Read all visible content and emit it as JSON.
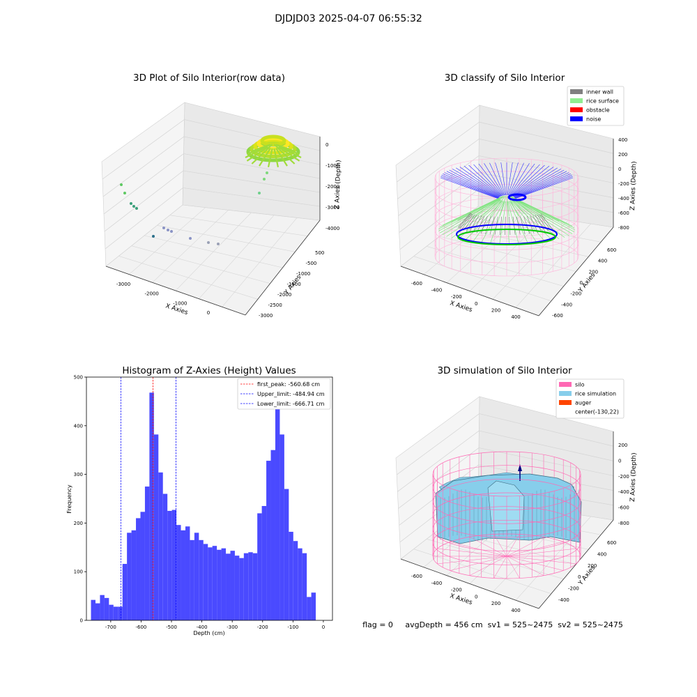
{
  "suptitle": "DJDJD03 2025-04-07 06:55:32",
  "footer": "flag = 0     avgDepth = 456 cm  sv1 = 525~2475  sv2 = 525~2475",
  "colors": {
    "hist_bar": "#4a4aff",
    "first_peak": "#ff0000",
    "limit": "#0000ff",
    "inner_wall": "#808080",
    "rice_surface": "#90ee90",
    "obstacle": "#ff0000",
    "noise": "#0000ff",
    "silo": "#ff69b4",
    "rice_simulation": "#87ceeb",
    "auger": "#ff4500"
  },
  "panels": {
    "p1": {
      "title": "3D Plot of Silo Interior(row data)",
      "x_label": "X Axies",
      "y_label": "Y Axies",
      "z_label": "Z Axies (Depth)",
      "x_ticks": [
        "-3000",
        "-2000",
        "-1000",
        "0"
      ],
      "y_ticks": [
        "500",
        "-500",
        "-1000",
        "-1500",
        "-2000",
        "-2500",
        "-3000"
      ],
      "z_ticks": [
        "0",
        "-1000",
        "-2000",
        "-3000",
        "-4000"
      ]
    },
    "p2": {
      "title": "3D classify of Silo Interior",
      "x_label": "X Axies",
      "y_label": "Y Axies",
      "z_label": "Z Axies (Depth)",
      "x_ticks": [
        "-600",
        "-400",
        "-200",
        "0",
        "200",
        "400"
      ],
      "y_ticks": [
        "600",
        "400",
        "200",
        "0",
        "-200",
        "-400",
        "-600"
      ],
      "z_ticks": [
        "400",
        "200",
        "0",
        "-200",
        "-400",
        "-600",
        "-800"
      ],
      "legend": [
        "inner wall",
        "rice surface",
        "obstacle",
        "noise"
      ]
    },
    "p4": {
      "title": "3D simulation of Silo Interior",
      "x_label": "X Axies",
      "y_label": "Y Axies",
      "z_label": "Z Axies (Depth)",
      "x_ticks": [
        "-600",
        "-400",
        "-200",
        "0",
        "200",
        "400"
      ],
      "y_ticks": [
        "600",
        "400",
        "200",
        "0",
        "-200",
        "-400"
      ],
      "z_ticks": [
        "200",
        "0",
        "-200",
        "-400",
        "-600",
        "-800"
      ],
      "legend": [
        "silo",
        "rice simulation",
        "auger",
        "center(-130,22)"
      ]
    }
  },
  "chart_data": [
    {
      "type": "bar",
      "title": "Histogram of Z-Axies (Height) Values",
      "xlabel": "Depth (cm)",
      "ylabel": "Frequency",
      "xlim": [
        -780,
        30
      ],
      "ylim": [
        0,
        500
      ],
      "x_ticks": [
        "-700",
        "-600",
        "-500",
        "-400",
        "-300",
        "-200",
        "-100",
        "0"
      ],
      "y_ticks": [
        "0",
        "100",
        "200",
        "300",
        "400",
        "500"
      ],
      "bin_start": -765,
      "bin_width": 14.8,
      "values": [
        42,
        35,
        52,
        46,
        32,
        28,
        28,
        116,
        180,
        185,
        210,
        223,
        275,
        468,
        382,
        304,
        260,
        225,
        227,
        196,
        185,
        193,
        165,
        180,
        165,
        157,
        150,
        153,
        145,
        148,
        137,
        143,
        133,
        128,
        138,
        140,
        138,
        220,
        235,
        328,
        350,
        475,
        382,
        270,
        182,
        163,
        148,
        138,
        48,
        57
      ],
      "lines": [
        {
          "label": "first_peak: -560.68 cm",
          "x": -560.68,
          "color": "#ff0000"
        },
        {
          "label": "Upper_limit: -484.94 cm",
          "x": -484.94,
          "color": "#0000ff"
        },
        {
          "label": "Lower_limit: -666.71 cm",
          "x": -666.71,
          "color": "#0000ff"
        }
      ]
    }
  ]
}
